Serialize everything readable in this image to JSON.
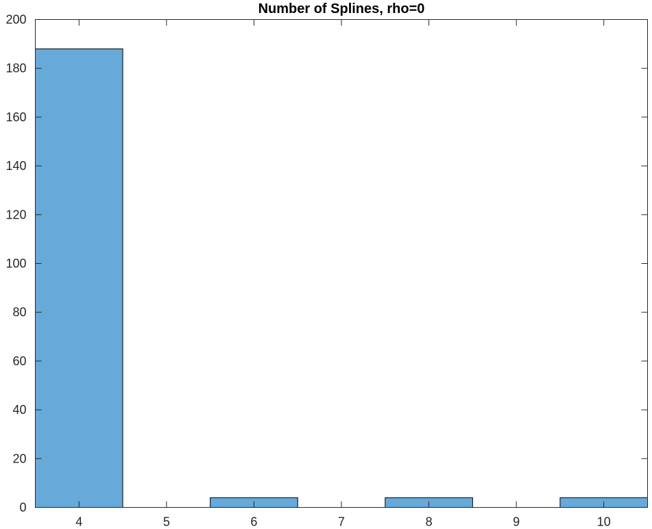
{
  "chart_data": {
    "type": "bar",
    "title": "Number of Splines, rho=0",
    "xlabel": "",
    "ylabel": "",
    "x": [
      4,
      6,
      8,
      10
    ],
    "values": [
      188,
      4,
      4,
      4
    ],
    "xlim": [
      3.5,
      10.5
    ],
    "ylim": [
      0,
      200
    ],
    "xticks": [
      4,
      5,
      6,
      7,
      8,
      9,
      10
    ],
    "yticks": [
      0,
      20,
      40,
      60,
      80,
      100,
      120,
      140,
      160,
      180,
      200
    ],
    "bar_width": 1,
    "grid": false,
    "colors": {
      "bar_fill": "#67A9D9",
      "bar_edge": "#000000",
      "axis": "#262626"
    }
  }
}
